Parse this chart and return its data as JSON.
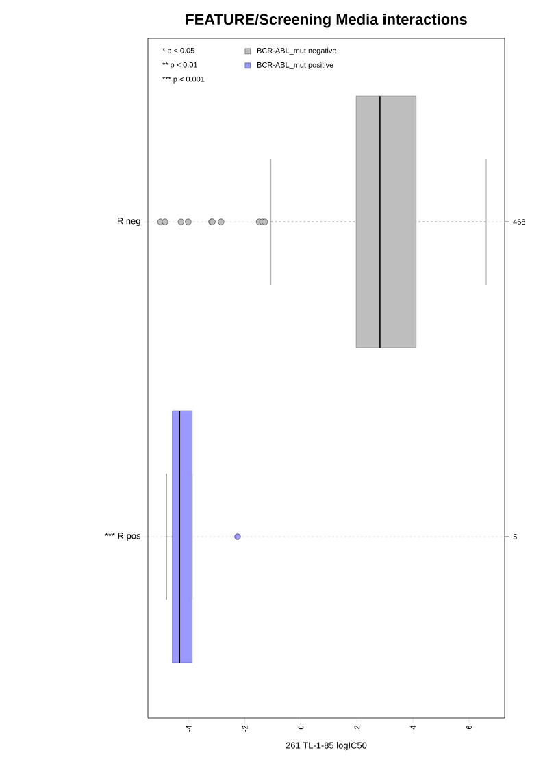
{
  "chart_data": {
    "type": "box",
    "orientation": "horizontal",
    "title": "FEATURE/Screening Media interactions",
    "xlabel": "261 TL-1-85 logIC50",
    "categories": [
      "R neg",
      "*** R pos"
    ],
    "series": [
      {
        "name": "BCR-ABL_mut negative",
        "color": "#bebebe",
        "boxes": [
          {
            "low": -1.07,
            "q1": 1.97,
            "median": 2.82,
            "q3": 4.11,
            "high": 6.61,
            "outliers": [
              -5.01,
              -4.85,
              -4.28,
              -4.02,
              -3.19,
              -3.16,
              -2.85,
              -1.49,
              -1.37,
              -1.29
            ]
          },
          null
        ]
      },
      {
        "name": "BCR-ABL_mut positive",
        "color": "#9999ff",
        "boxes": [
          null,
          {
            "low": -4.79,
            "q1": -4.59,
            "median": -4.33,
            "q3": -3.88,
            "high": -3.88,
            "outliers": [
              -2.26
            ]
          }
        ]
      }
    ],
    "xlim": [
      -5.46,
      7.27
    ],
    "xticks": [
      -4,
      -2,
      0,
      2,
      4,
      6
    ],
    "grid": "y",
    "legend": "top left",
    "annotations": [
      "* p < 0.05",
      "** p < 0.01",
      "*** p < 0.001",
      "468",
      "5"
    ]
  }
}
